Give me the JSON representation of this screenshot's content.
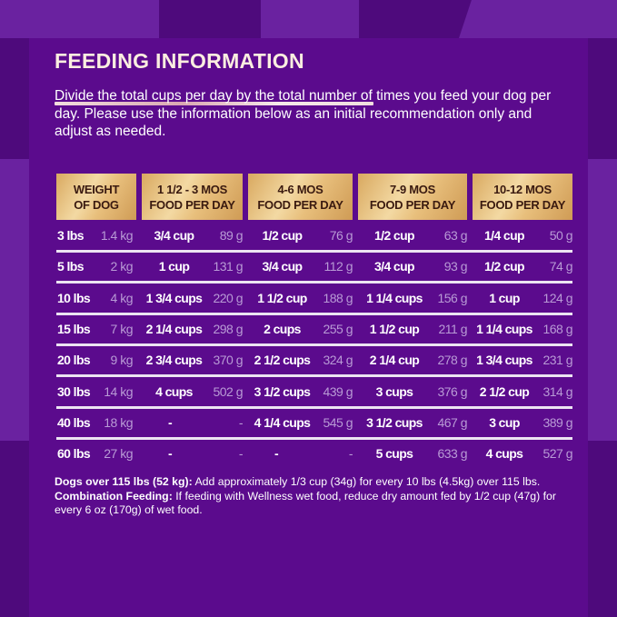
{
  "colors": {
    "background": "#5b0b8d",
    "header_gold": "#e8bf7c",
    "cups_text": "#ffffff",
    "grams_text": "#b99bd6"
  },
  "title": "FEEDING INFORMATION",
  "intro": "Divide the total cups per day by the total number of times you feed your dog per day. Please use the information below as an initial recommendation only and adjust as needed.",
  "table": {
    "headers": [
      {
        "line1": "WEIGHT",
        "line2": "OF DOG"
      },
      {
        "line1": "1 1/2 - 3 MOS",
        "line2": "FOOD PER DAY"
      },
      {
        "line1": "4-6 MOS",
        "line2": "FOOD PER DAY"
      },
      {
        "line1": "7-9 MOS",
        "line2": "FOOD PER DAY"
      },
      {
        "line1": "10-12 MOS",
        "line2": "FOOD PER DAY"
      }
    ],
    "rows": [
      {
        "lbs": "3 lbs",
        "kg": "1.4 kg",
        "cells": [
          {
            "cups": "3/4 cup",
            "g": "89 g"
          },
          {
            "cups": "1/2 cup",
            "g": "76 g"
          },
          {
            "cups": "1/2 cup",
            "g": "63 g"
          },
          {
            "cups": "1/4 cup",
            "g": "50 g"
          }
        ]
      },
      {
        "lbs": "5 lbs",
        "kg": "2 kg",
        "cells": [
          {
            "cups": "1 cup",
            "g": "131 g"
          },
          {
            "cups": "3/4 cup",
            "g": "112 g"
          },
          {
            "cups": "3/4 cup",
            "g": "93 g"
          },
          {
            "cups": "1/2 cup",
            "g": "74 g"
          }
        ]
      },
      {
        "lbs": "10 lbs",
        "kg": "4 kg",
        "cells": [
          {
            "cups": "1 3/4 cups",
            "g": "220 g"
          },
          {
            "cups": "1 1/2 cup",
            "g": "188 g"
          },
          {
            "cups": "1 1/4 cups",
            "g": "156 g"
          },
          {
            "cups": "1 cup",
            "g": "124 g"
          }
        ]
      },
      {
        "lbs": "15 lbs",
        "kg": "7 kg",
        "cells": [
          {
            "cups": "2 1/4 cups",
            "g": "298 g"
          },
          {
            "cups": "2 cups",
            "g": "255 g"
          },
          {
            "cups": "1 1/2 cup",
            "g": "211 g"
          },
          {
            "cups": "1 1/4 cups",
            "g": "168 g"
          }
        ]
      },
      {
        "lbs": "20 lbs",
        "kg": "9 kg",
        "cells": [
          {
            "cups": "2 3/4 cups",
            "g": "370 g"
          },
          {
            "cups": "2 1/2 cups",
            "g": "324 g"
          },
          {
            "cups": "2 1/4 cup",
            "g": "278 g"
          },
          {
            "cups": "1 3/4 cups",
            "g": "231 g"
          }
        ]
      },
      {
        "lbs": "30 lbs",
        "kg": "14 kg",
        "cells": [
          {
            "cups": "4 cups",
            "g": "502 g"
          },
          {
            "cups": "3 1/2 cups",
            "g": "439 g"
          },
          {
            "cups": "3 cups",
            "g": "376 g"
          },
          {
            "cups": "2 1/2 cup",
            "g": "314 g"
          }
        ]
      },
      {
        "lbs": "40 lbs",
        "kg": "18 kg",
        "cells": [
          {
            "cups": "-",
            "g": "-"
          },
          {
            "cups": "4 1/4 cups",
            "g": "545 g"
          },
          {
            "cups": "3 1/2 cups",
            "g": "467 g"
          },
          {
            "cups": "3 cup",
            "g": "389 g"
          }
        ]
      },
      {
        "lbs": "60 lbs",
        "kg": "27 kg",
        "cells": [
          {
            "cups": "-",
            "g": "-"
          },
          {
            "cups": "-",
            "g": "-"
          },
          {
            "cups": "5 cups",
            "g": "633 g"
          },
          {
            "cups": "4 cups",
            "g": "527 g"
          }
        ]
      }
    ]
  },
  "footnote": {
    "label1": "Dogs over 115 lbs (52 kg):",
    "text1": " Add approximately 1/3 cup (34g) for every 10 lbs (4.5kg) over 115 lbs. ",
    "label2": "Combination Feeding:",
    "text2": " If feeding with Wellness wet food, reduce dry amount fed by 1/2 cup (47g) for every 6 oz (170g) of wet food."
  }
}
